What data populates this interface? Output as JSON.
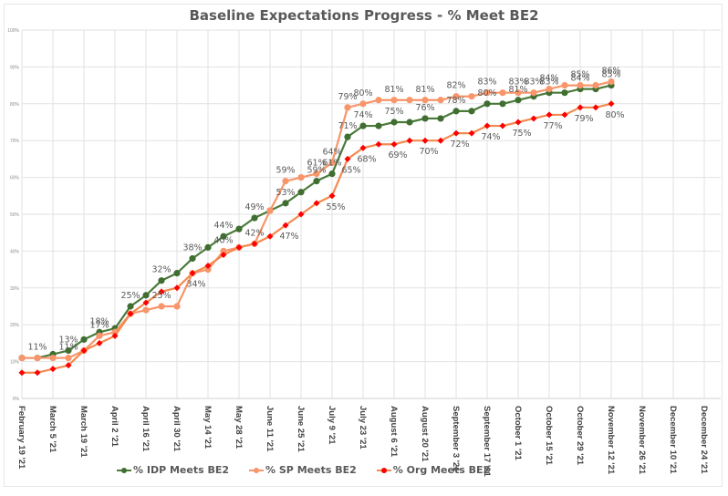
{
  "chart_data": {
    "type": "line",
    "title": "Baseline Expectations Progress - % Meet BE2",
    "xlabel": "",
    "ylabel": "",
    "ylim": [
      0,
      100
    ],
    "y_ticks": [
      "0%",
      "10%",
      "20%",
      "30%",
      "40%",
      "50%",
      "60%",
      "70%",
      "80%",
      "90%",
      "100%"
    ],
    "x_tick_labels": [
      "February 19 '21",
      "March 5 '21",
      "March 19 '21",
      "April 2 '21",
      "April 16 '21",
      "April 30 '21",
      "May 14 '21",
      "May 28 '21",
      "June 11 '21",
      "June 25 '21",
      "July 9 '21",
      "July 23 '21",
      "August 6 '21",
      "August 20 '21",
      "September 3 '21",
      "September 17 '21",
      "October 1 '21",
      "October 15 '21",
      "October 29 '21",
      "November 12 '21",
      "November 26 '21",
      "December 10 '21",
      "December 24 '21"
    ],
    "x_unit": "weeks since February 19 '21",
    "grid": true,
    "legend_position": "bottom",
    "series": [
      {
        "name": "% IDP Meets BE2",
        "color": "#4a7a3a",
        "marker_color": "#3f6e30",
        "values": [
          11,
          11,
          12,
          13,
          16,
          18,
          19,
          25,
          28,
          32,
          34,
          38,
          41,
          44,
          46,
          49,
          51,
          53,
          56,
          59,
          61,
          71,
          74,
          74,
          75,
          75,
          76,
          76,
          78,
          78,
          80,
          80,
          81,
          82,
          83,
          83,
          84,
          84,
          85
        ],
        "data_labels": {
          "1": "11%",
          "3": "13%",
          "5": "18%",
          "7": "25%",
          "9": "32%",
          "11": "38%",
          "13": "44%",
          "15": "49%",
          "17": "53%",
          "19": "59%",
          "20": "61%",
          "21": "71%",
          "22": "74%",
          "24": "75%",
          "26": "76%",
          "28": "78%",
          "30": "80%",
          "32": "81%",
          "34": "83%",
          "36": "84%",
          "38": "85%"
        }
      },
      {
        "name": "% SP Meets BE2",
        "color": "#f8956a",
        "marker_color": "#f8956a",
        "values": [
          11,
          11,
          11,
          11,
          13,
          17,
          18,
          23,
          24,
          25,
          25,
          34,
          35,
          40,
          41,
          42,
          51,
          59,
          60,
          61,
          64,
          79,
          80,
          81,
          81,
          81,
          81,
          81,
          82,
          82,
          83,
          83,
          83,
          83,
          84,
          85,
          85,
          85,
          86
        ],
        "data_labels": {
          "3": "11%",
          "5": "17%",
          "9": "25%",
          "13": "40%",
          "15": "42%",
          "17": "59%",
          "19": "61%",
          "20": "64%",
          "21": "79%",
          "22": "80%",
          "24": "81%",
          "26": "81%",
          "28": "82%",
          "30": "83%",
          "32": "83%",
          "33": "83%",
          "34": "84%",
          "36": "85%",
          "38": "86%"
        }
      },
      {
        "name": "% Org Meets BE2",
        "color": "#f4894f",
        "marker_color": "#ff0000",
        "values": [
          7,
          7,
          8,
          9,
          13,
          15,
          17,
          23,
          26,
          29,
          30,
          34,
          36,
          39,
          41,
          42,
          44,
          47,
          50,
          53,
          55,
          65,
          68,
          69,
          69,
          70,
          70,
          70,
          72,
          72,
          74,
          74,
          75,
          76,
          77,
          77,
          79,
          79,
          80
        ],
        "data_labels": {
          "11": "34%",
          "17": "47%",
          "20": "55%",
          "21": "65%",
          "22": "68%",
          "24": "69%",
          "26": "70%",
          "28": "72%",
          "30": "74%",
          "32": "75%",
          "34": "77%",
          "36": "79%",
          "38": "80%"
        }
      }
    ]
  }
}
